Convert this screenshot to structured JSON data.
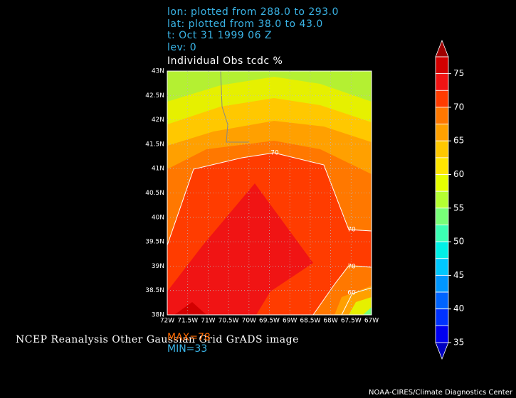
{
  "header": {
    "lines": [
      "lon: plotted from 288.0 to 293.0",
      "lat: plotted from 38.0 to 43.0",
      "t: Oct 31 1999 06 Z",
      "lev: 0"
    ],
    "title": "Individual Obs tcdc %"
  },
  "map": {
    "lat_labels": [
      "43N",
      "42.5N",
      "42N",
      "41.5N",
      "41N",
      "40.5N",
      "40N",
      "39.5N",
      "39N",
      "38.5N",
      "38N"
    ],
    "lon_labels": [
      "72W",
      "71.5W",
      "71W",
      "70.5W",
      "70W",
      "69.5W",
      "69W",
      "68.5W",
      "68W",
      "67.5W",
      "67W"
    ],
    "contour_labels": [
      "70",
      "70",
      "70",
      "60"
    ]
  },
  "colorbar": {
    "levels": [
      75,
      70,
      65,
      60,
      55,
      50,
      45,
      40,
      35
    ],
    "colors": [
      "#a00000",
      "#d20000",
      "#f01414",
      "#ff3c00",
      "#ff7800",
      "#ffa000",
      "#ffc800",
      "#ffe600",
      "#e6ff00",
      "#b4ff32",
      "#78ff78",
      "#3cffb4",
      "#00f0e6",
      "#00c8ff",
      "#0096ff",
      "#0064ff",
      "#0032ff",
      "#0000f0",
      "#0000c0"
    ]
  },
  "footer": {
    "caption": "NCEP Reanalysis Other Gaussian Grid GrADS image",
    "max": "MAX=78",
    "min": "MIN=33",
    "credit": "NOAA-CIRES/Climate Diagnostics Center"
  }
}
